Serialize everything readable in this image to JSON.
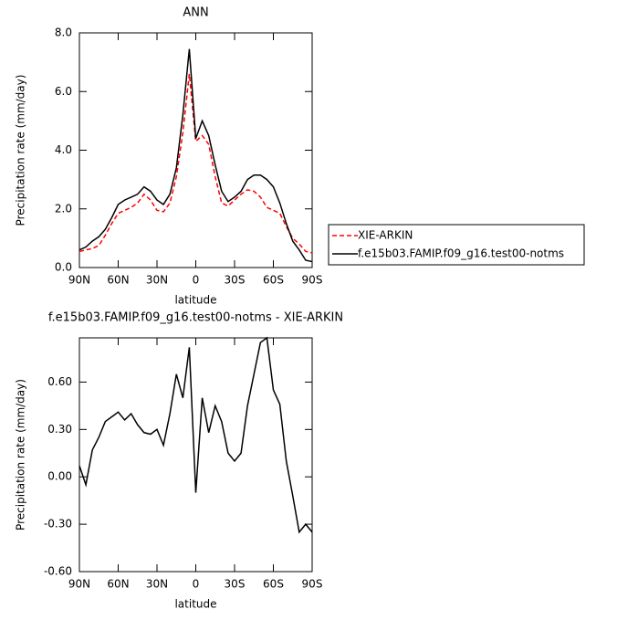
{
  "chart_data": [
    {
      "type": "line",
      "title": "ANN",
      "ylabel": "Precipitation rate (mm/day)",
      "xlabel": "latitude",
      "x": [
        90,
        85,
        80,
        75,
        70,
        65,
        60,
        55,
        50,
        45,
        40,
        35,
        30,
        25,
        20,
        15,
        10,
        5,
        0,
        -5,
        -10,
        -15,
        -20,
        -25,
        -30,
        -35,
        -40,
        -45,
        -50,
        -55,
        -60,
        -65,
        -70,
        -75,
        -80,
        -85,
        -90
      ],
      "xlim": [
        90,
        -90
      ],
      "xticks": [
        {
          "value": 90,
          "label": "90N"
        },
        {
          "value": 60,
          "label": "60N"
        },
        {
          "value": 30,
          "label": "30N"
        },
        0,
        {
          "value": -30,
          "label": "30S"
        },
        {
          "value": -60,
          "label": "60S"
        },
        {
          "value": -90,
          "label": "90S"
        }
      ],
      "ylim": [
        0,
        8
      ],
      "yticks": [
        {
          "value": 0,
          "label": "0.0"
        },
        {
          "value": 2,
          "label": "2.0"
        },
        {
          "value": 4,
          "label": "4.0"
        },
        {
          "value": 6,
          "label": "6.0"
        },
        {
          "value": 8,
          "label": "8.0"
        }
      ],
      "legend": "right",
      "series": [
        {
          "name": "XIE-ARKIN",
          "color": "#ff0000",
          "dashed": true,
          "values": [
            0.55,
            0.6,
            0.65,
            0.75,
            1.1,
            1.5,
            1.85,
            1.95,
            2.05,
            2.2,
            2.5,
            2.3,
            1.95,
            1.9,
            2.2,
            3.1,
            4.6,
            6.6,
            4.3,
            4.5,
            4.2,
            3.1,
            2.2,
            2.1,
            2.3,
            2.5,
            2.65,
            2.6,
            2.4,
            2.05,
            1.95,
            1.85,
            1.4,
            1.0,
            0.8,
            0.55,
            0.5
          ]
        },
        {
          "name": "f.e15b03.FAMIP.f09_g16.test00-notms",
          "color": "#000000",
          "dashed": false,
          "values": [
            0.6,
            0.7,
            0.9,
            1.05,
            1.3,
            1.7,
            2.15,
            2.3,
            2.4,
            2.5,
            2.75,
            2.6,
            2.3,
            2.15,
            2.5,
            3.4,
            5.2,
            7.45,
            4.4,
            5.0,
            4.5,
            3.5,
            2.6,
            2.25,
            2.4,
            2.6,
            3.0,
            3.15,
            3.15,
            3.0,
            2.75,
            2.2,
            1.5,
            0.9,
            0.6,
            0.25,
            0.2
          ]
        }
      ]
    },
    {
      "type": "line",
      "title": "f.e15b03.FAMIP.f09_g16.test00-notms - XIE-ARKIN",
      "ylabel": "Precipitation rate (mm/day)",
      "xlabel": "latitude",
      "x": [
        90,
        85,
        80,
        75,
        70,
        65,
        60,
        55,
        50,
        45,
        40,
        35,
        30,
        25,
        20,
        15,
        10,
        5,
        0,
        -5,
        -10,
        -15,
        -20,
        -25,
        -30,
        -35,
        -40,
        -45,
        -50,
        -55,
        -60,
        -65,
        -70,
        -75,
        -80,
        -85,
        -90
      ],
      "xlim": [
        90,
        -90
      ],
      "xticks": [
        {
          "value": 90,
          "label": "90N"
        },
        {
          "value": 60,
          "label": "60N"
        },
        {
          "value": 30,
          "label": "30N"
        },
        0,
        {
          "value": -30,
          "label": "30S"
        },
        {
          "value": -60,
          "label": "60S"
        },
        {
          "value": -90,
          "label": "90S"
        }
      ],
      "ylim": [
        -0.6,
        0.88
      ],
      "yticks": [
        {
          "value": -0.6,
          "label": "-0.60"
        },
        {
          "value": -0.3,
          "label": "-0.30"
        },
        {
          "value": 0,
          "label": "0.00"
        },
        {
          "value": 0.3,
          "label": "0.30"
        },
        {
          "value": 0.6,
          "label": "0.60"
        }
      ],
      "series": [
        {
          "color": "#000000",
          "dashed": false,
          "values": [
            0.07,
            -0.05,
            0.17,
            0.25,
            0.35,
            0.38,
            0.41,
            0.36,
            0.4,
            0.33,
            0.28,
            0.27,
            0.3,
            0.2,
            0.4,
            0.65,
            0.5,
            0.82,
            -0.1,
            0.5,
            0.28,
            0.45,
            0.35,
            0.15,
            0.1,
            0.15,
            0.45,
            0.65,
            0.85,
            0.88,
            0.55,
            0.46,
            0.1,
            -0.12,
            -0.35,
            -0.3,
            -0.35
          ]
        }
      ]
    }
  ]
}
